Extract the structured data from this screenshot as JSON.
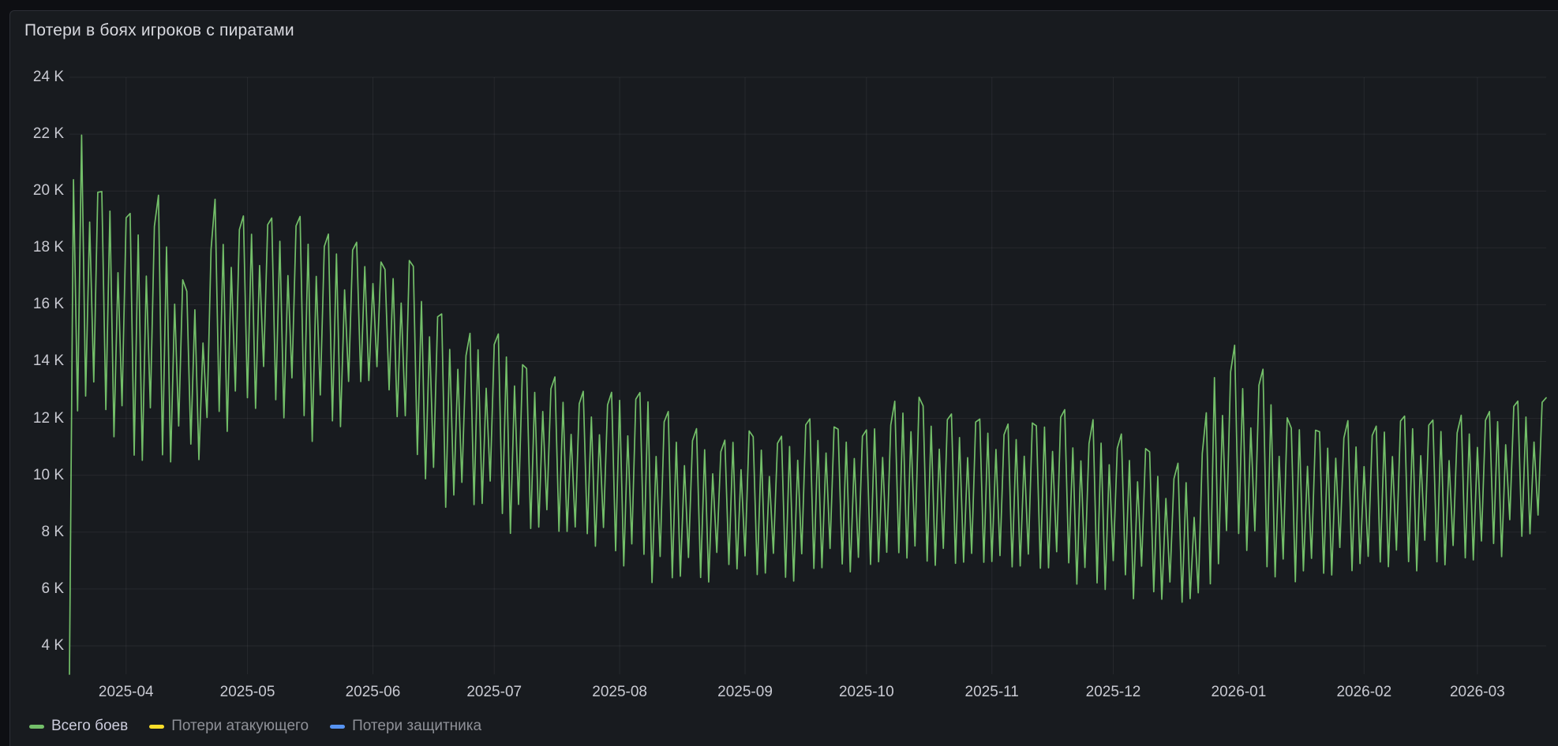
{
  "panel": {
    "title": "Потери в боях игроков с пиратами"
  },
  "colors": {
    "page_bg": "#0e0f13",
    "panel_bg": "#181b1f",
    "grid": "rgba(204,204,220,0.08)",
    "tick_text": "#c9cad2",
    "series_green": "#73BF69",
    "series_yellow": "#FADE2A",
    "series_blue": "#5794F2"
  },
  "legend": {
    "items": [
      {
        "label": "Всего боев",
        "color": "#73BF69",
        "visible": true
      },
      {
        "label": "Потери атакующего",
        "color": "#FADE2A",
        "visible": false
      },
      {
        "label": "Потери защитника",
        "color": "#5794F2",
        "visible": false
      }
    ]
  },
  "chart_data": {
    "type": "line",
    "title": "Потери в боях игроков с пиратами",
    "xlabel": "",
    "ylabel": "",
    "x_start_date": "2025-03-18",
    "x_end_date": "2026-03-18",
    "x_resolution": "daily",
    "ylim": [
      3,
      24
    ],
    "grid": true,
    "legend_position": "bottom",
    "y_ticks": [
      {
        "value": 24,
        "label": "24 K"
      },
      {
        "value": 22,
        "label": "22 K"
      },
      {
        "value": 20,
        "label": "20 K"
      },
      {
        "value": 18,
        "label": "18 K"
      },
      {
        "value": 16,
        "label": "16 K"
      },
      {
        "value": 14,
        "label": "14 K"
      },
      {
        "value": 12,
        "label": "12 K"
      },
      {
        "value": 10,
        "label": "10 K"
      },
      {
        "value": 8,
        "label": "8 K"
      },
      {
        "value": 6,
        "label": "6 K"
      },
      {
        "value": 4,
        "label": "4 K"
      }
    ],
    "x_ticks": [
      {
        "day": 14,
        "label": "2025-04"
      },
      {
        "day": 44,
        "label": "2025-05"
      },
      {
        "day": 75,
        "label": "2025-06"
      },
      {
        "day": 105,
        "label": "2025-07"
      },
      {
        "day": 136,
        "label": "2025-08"
      },
      {
        "day": 167,
        "label": "2025-09"
      },
      {
        "day": 197,
        "label": "2025-10"
      },
      {
        "day": 228,
        "label": "2025-11"
      },
      {
        "day": 258,
        "label": "2025-12"
      },
      {
        "day": 289,
        "label": "2026-01"
      },
      {
        "day": 320,
        "label": "2026-02"
      },
      {
        "day": 348,
        "label": "2026-03"
      }
    ],
    "series": [
      {
        "name": "Всего боев",
        "color": "#73BF69",
        "visible": true,
        "unit": "K",
        "first_value": 3.0,
        "weekly_pattern": [
          1.0,
          0.08,
          0.9,
          0.05,
          0.75,
          0.18,
          0.95
        ],
        "jitter": 0.12,
        "envelope_lo_hi_by_day": [
          [
            0,
            11.6,
            20.2
          ],
          [
            3,
            12.2,
            22.4
          ],
          [
            6,
            11.8,
            20.6
          ],
          [
            10,
            11.5,
            19.9
          ],
          [
            14,
            10.2,
            19.5
          ],
          [
            18,
            10.0,
            19.7
          ],
          [
            24,
            10.4,
            19.3
          ],
          [
            28,
            10.4,
            17.0
          ],
          [
            33,
            10.1,
            16.0
          ],
          [
            36,
            11.2,
            19.3
          ],
          [
            43,
            11.8,
            19.5
          ],
          [
            50,
            12.4,
            18.9
          ],
          [
            57,
            11.4,
            19.4
          ],
          [
            64,
            11.0,
            18.2
          ],
          [
            71,
            12.6,
            17.9
          ],
          [
            78,
            13.1,
            17.5
          ],
          [
            83,
            10.6,
            17.7
          ],
          [
            90,
            8.9,
            16.3
          ],
          [
            97,
            8.5,
            14.9
          ],
          [
            104,
            8.2,
            14.9
          ],
          [
            111,
            7.8,
            14.3
          ],
          [
            118,
            7.6,
            13.3
          ],
          [
            125,
            7.4,
            12.7
          ],
          [
            132,
            7.1,
            12.9
          ],
          [
            139,
            6.6,
            13.6
          ],
          [
            146,
            6.1,
            12.3
          ],
          [
            153,
            5.9,
            11.5
          ],
          [
            160,
            6.2,
            11.3
          ],
          [
            167,
            6.3,
            11.6
          ],
          [
            174,
            6.0,
            11.3
          ],
          [
            181,
            6.2,
            11.7
          ],
          [
            188,
            6.4,
            11.9
          ],
          [
            195,
            6.2,
            11.7
          ],
          [
            202,
            6.4,
            12.3
          ],
          [
            209,
            6.6,
            12.8
          ],
          [
            216,
            6.3,
            12.1
          ],
          [
            223,
            6.5,
            12.0
          ],
          [
            230,
            6.4,
            12.0
          ],
          [
            237,
            6.2,
            11.8
          ],
          [
            244,
            6.4,
            12.1
          ],
          [
            251,
            6.0,
            11.7
          ],
          [
            258,
            5.8,
            11.6
          ],
          [
            265,
            5.6,
            11.2
          ],
          [
            272,
            5.3,
            10.4
          ],
          [
            279,
            5.2,
            9.9
          ],
          [
            283,
            6.0,
            13.9
          ],
          [
            287,
            7.5,
            14.3
          ],
          [
            291,
            7.0,
            13.8
          ],
          [
            295,
            6.6,
            13.5
          ],
          [
            300,
            6.2,
            12.1
          ],
          [
            307,
            6.0,
            11.7
          ],
          [
            314,
            6.2,
            11.9
          ],
          [
            321,
            6.4,
            11.8
          ],
          [
            328,
            6.2,
            11.9
          ],
          [
            335,
            6.6,
            12.2
          ],
          [
            342,
            6.4,
            11.9
          ],
          [
            349,
            7.0,
            12.1
          ],
          [
            356,
            7.2,
            12.5
          ],
          [
            362,
            7.4,
            12.8
          ],
          [
            365,
            7.6,
            12.9
          ]
        ]
      },
      {
        "name": "Потери атакующего",
        "color": "#FADE2A",
        "visible": false
      },
      {
        "name": "Потери защитника",
        "color": "#5794F2",
        "visible": false
      }
    ]
  }
}
